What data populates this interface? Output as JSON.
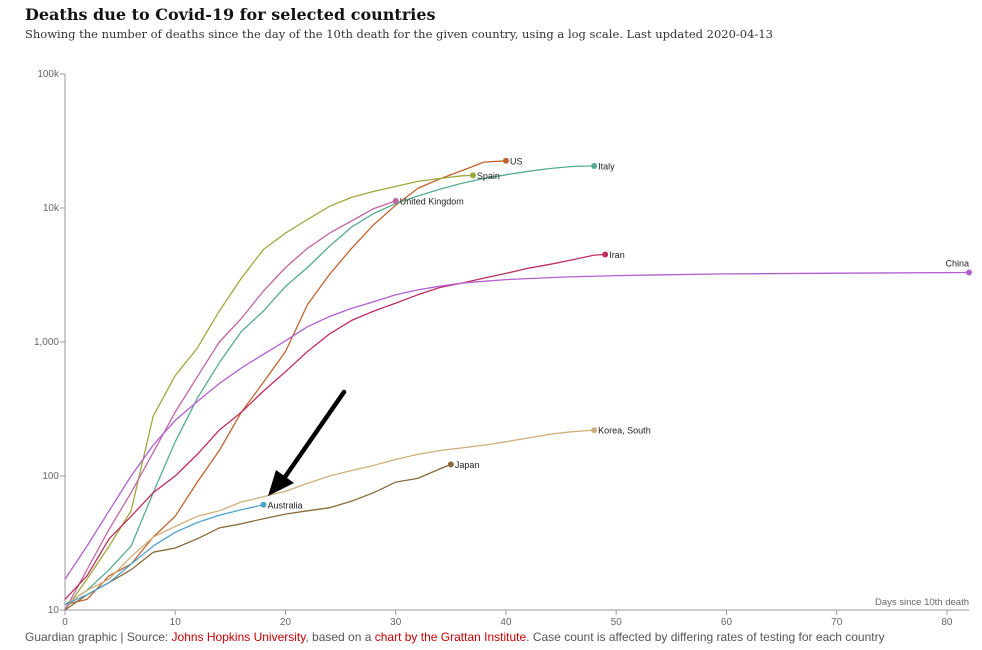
{
  "header": {
    "title": "Deaths due to Covid-19 for selected countries",
    "subtitle": "Showing the number of deaths since the day of the 10th death for the given country, using a log scale. Last updated 2020-04-13"
  },
  "footer": {
    "prefix": "Guardian graphic | Source: ",
    "link1": "Johns Hopkins University",
    "mid": ", based on a ",
    "link2": "chart by the Grattan Institute",
    "suffix": ". Case count is affected by differing rates of testing for each country"
  },
  "colors": {
    "link": "#c70000",
    "axis": "#999999",
    "arrow": "#000000"
  },
  "chart_data": {
    "type": "line",
    "title": "Deaths due to Covid-19 for selected countries",
    "xlabel": "Days since 10th death",
    "ylabel": "",
    "xlim": [
      0,
      82
    ],
    "ylim": [
      10,
      100000
    ],
    "yscale": "log",
    "x_ticks": [
      0,
      10,
      20,
      30,
      40,
      50,
      60,
      70,
      80
    ],
    "y_ticks": [
      10,
      100,
      1000,
      10000,
      100000
    ],
    "y_tick_labels": [
      "10",
      "100",
      "1,000",
      "10k",
      "100k"
    ],
    "grid": false,
    "annotation": "arrow pointing to Australia",
    "series": [
      {
        "name": "US",
        "color": "#c1632e",
        "x": [
          0,
          2,
          4,
          6,
          8,
          10,
          12,
          14,
          16,
          18,
          20,
          22,
          24,
          26,
          28,
          30,
          32,
          34,
          36,
          38,
          40
        ],
        "y": [
          11,
          12,
          18,
          22,
          35,
          50,
          90,
          155,
          300,
          500,
          850,
          1900,
          3200,
          5000,
          7500,
          10500,
          14000,
          16500,
          19000,
          22000,
          22500
        ]
      },
      {
        "name": "Italy",
        "color": "#56ab92",
        "x": [
          0,
          2,
          4,
          6,
          8,
          10,
          12,
          14,
          16,
          18,
          20,
          22,
          24,
          26,
          28,
          30,
          32,
          34,
          36,
          38,
          40,
          42,
          44,
          46,
          48
        ],
        "y": [
          11,
          14,
          20,
          30,
          75,
          180,
          380,
          700,
          1200,
          1700,
          2600,
          3600,
          5200,
          7200,
          9100,
          10800,
          12300,
          13800,
          15300,
          16600,
          17700,
          18800,
          19700,
          20400,
          20600
        ]
      },
      {
        "name": "Spain",
        "color": "#9ea83d",
        "x": [
          0,
          2,
          4,
          6,
          8,
          10,
          12,
          14,
          16,
          18,
          20,
          22,
          24,
          26,
          28,
          30,
          32,
          34,
          36,
          37
        ],
        "y": [
          10,
          17,
          30,
          55,
          280,
          560,
          900,
          1700,
          3000,
          4900,
          6500,
          8200,
          10300,
          12000,
          13300,
          14500,
          15800,
          16600,
          17400,
          17500
        ]
      },
      {
        "name": "United Kingdom",
        "color": "#c066a7",
        "x": [
          0,
          2,
          4,
          6,
          8,
          10,
          12,
          14,
          16,
          18,
          20,
          22,
          24,
          26,
          28,
          30
        ],
        "y": [
          10,
          20,
          40,
          75,
          150,
          300,
          550,
          1000,
          1500,
          2400,
          3600,
          5000,
          6500,
          8000,
          9900,
          11300
        ]
      },
      {
        "name": "Iran",
        "color": "#bf2f5d",
        "x": [
          0,
          2,
          4,
          6,
          8,
          10,
          12,
          14,
          16,
          18,
          20,
          22,
          24,
          26,
          28,
          30,
          32,
          34,
          36,
          38,
          40,
          42,
          44,
          46,
          48,
          49
        ],
        "y": [
          12,
          18,
          34,
          50,
          75,
          100,
          145,
          220,
          300,
          430,
          600,
          850,
          1150,
          1450,
          1700,
          1950,
          2250,
          2550,
          2750,
          3000,
          3250,
          3550,
          3800,
          4100,
          4450,
          4500
        ]
      },
      {
        "name": "China",
        "color": "#b25fcf",
        "x": [
          0,
          2,
          4,
          6,
          8,
          10,
          12,
          14,
          16,
          18,
          20,
          22,
          24,
          26,
          28,
          30,
          32,
          34,
          36,
          38,
          40,
          45,
          50,
          55,
          60,
          70,
          82
        ],
        "y": [
          17,
          30,
          55,
          100,
          170,
          260,
          360,
          490,
          640,
          810,
          1020,
          1300,
          1550,
          1780,
          2000,
          2250,
          2450,
          2610,
          2750,
          2840,
          2920,
          3050,
          3130,
          3180,
          3220,
          3260,
          3300
        ]
      },
      {
        "name": "Korea, South",
        "color": "#cfae7b",
        "x": [
          0,
          2,
          4,
          6,
          8,
          10,
          12,
          14,
          16,
          18,
          20,
          22,
          24,
          26,
          28,
          30,
          32,
          34,
          36,
          38,
          40,
          42,
          44,
          46,
          48
        ],
        "y": [
          11,
          14,
          17,
          25,
          35,
          42,
          50,
          55,
          64,
          70,
          77,
          88,
          100,
          110,
          120,
          133,
          145,
          155,
          162,
          170,
          180,
          192,
          205,
          214,
          220
        ]
      },
      {
        "name": "Japan",
        "color": "#8a6a3a",
        "x": [
          0,
          2,
          4,
          6,
          8,
          10,
          12,
          14,
          16,
          18,
          20,
          22,
          24,
          26,
          28,
          30,
          32,
          34,
          35
        ],
        "y": [
          10,
          13,
          16,
          20,
          27,
          29,
          34,
          41,
          44,
          48,
          52,
          55,
          58,
          65,
          75,
          90,
          96,
          113,
          122
        ]
      },
      {
        "name": "Australia",
        "color": "#4ea3c8",
        "x": [
          0,
          2,
          4,
          6,
          8,
          10,
          12,
          14,
          16,
          18
        ],
        "y": [
          11,
          13,
          16,
          22,
          30,
          38,
          45,
          51,
          56,
          61
        ]
      }
    ]
  }
}
